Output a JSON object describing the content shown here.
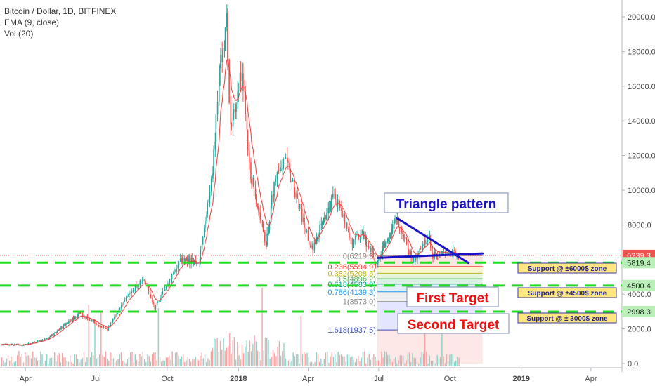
{
  "header": {
    "symbol": "Bitcoin / Dollar, 1D, BITFINEX",
    "indicator_ema": "EMA (9, close)",
    "indicator_vol": "Vol (20)"
  },
  "colors": {
    "up": "#26a69a",
    "down": "#ef5350",
    "vol_up": "#8fd0c8",
    "vol_down": "#f4a6a6",
    "ema": "#e53935",
    "support_line": "#22dd22",
    "triangle_line": "#1a12c8",
    "price_tag": "#ef5350",
    "target_text": "#ee1111",
    "annotation_blue": "#1a12c8",
    "support_box_bg": "#ffe680"
  },
  "chart_data": {
    "type": "candlestick",
    "title": "Bitcoin / Dollar, 1D, BITFINEX",
    "x_ticks": [
      "Apr",
      "Jul",
      "Oct",
      "2018",
      "Apr",
      "Jul",
      "Oct",
      "2019",
      "Apr"
    ],
    "y_ticks": [
      "20000.0",
      "18000.0",
      "16000.0",
      "14000.0",
      "12000.0",
      "10000.0",
      "8000.0",
      "6000.0",
      "4000.0",
      "2000.0",
      "0.0"
    ],
    "ylim": [
      0,
      20000
    ],
    "current_price": "6239.3",
    "price_series": [
      {
        "date": "2017-03-01",
        "close": 1100
      },
      {
        "date": "2017-04-01",
        "close": 1080
      },
      {
        "date": "2017-05-01",
        "close": 1450
      },
      {
        "date": "2017-06-10",
        "close": 2900
      },
      {
        "date": "2017-07-16",
        "close": 1950
      },
      {
        "date": "2017-08-15",
        "close": 4200
      },
      {
        "date": "2017-09-02",
        "close": 4900
      },
      {
        "date": "2017-09-15",
        "close": 3200
      },
      {
        "date": "2017-10-20",
        "close": 6000
      },
      {
        "date": "2017-11-12",
        "close": 5900
      },
      {
        "date": "2017-11-29",
        "close": 10800
      },
      {
        "date": "2017-12-07",
        "close": 16500
      },
      {
        "date": "2017-12-17",
        "close": 19700
      },
      {
        "date": "2017-12-22",
        "close": 13500
      },
      {
        "date": "2018-01-06",
        "close": 17000
      },
      {
        "date": "2018-01-17",
        "close": 11000
      },
      {
        "date": "2018-02-06",
        "close": 6900
      },
      {
        "date": "2018-02-20",
        "close": 11400
      },
      {
        "date": "2018-03-05",
        "close": 11500
      },
      {
        "date": "2018-04-06",
        "close": 6600
      },
      {
        "date": "2018-05-05",
        "close": 9800
      },
      {
        "date": "2018-05-28",
        "close": 7100
      },
      {
        "date": "2018-06-10",
        "close": 7500
      },
      {
        "date": "2018-06-29",
        "close": 5800
      },
      {
        "date": "2018-07-24",
        "close": 8400
      },
      {
        "date": "2018-08-14",
        "close": 5900
      },
      {
        "date": "2018-09-04",
        "close": 7400
      },
      {
        "date": "2018-09-08",
        "close": 6200
      },
      {
        "date": "2018-09-25",
        "close": 6500
      },
      {
        "date": "2018-10-12",
        "close": 6239
      }
    ],
    "fib_levels": [
      {
        "label": "0(6219.3)",
        "value": 6219.3,
        "color": "#888888",
        "band": "#fde0dc"
      },
      {
        "label": "0.236(5594.9)",
        "value": 5594.9,
        "color": "#f44336",
        "band": "#f6f4c9"
      },
      {
        "label": "0.382(5208.5)",
        "value": 5208.5,
        "color": "#c0b320",
        "band": "#e0f2d5"
      },
      {
        "label": "0.5(4896.2)",
        "value": 4896.2,
        "color": "#4caf50",
        "band": "#d5efe0"
      },
      {
        "label": "0.618(4583.9)",
        "value": 4583.9,
        "color": "#089981",
        "band": "#d9ecf7"
      },
      {
        "label": "0.786(4139.3)",
        "value": 4139.3,
        "color": "#2196f3",
        "band": "#ececec"
      },
      {
        "label": "1(3573.0)",
        "value": 3573.0,
        "color": "#888888",
        "band": "#dfe0ff"
      },
      {
        "label": "1.618(1937.5)",
        "value": 1937.5,
        "color": "#3f51b5",
        "band": "#fde3e3"
      }
    ],
    "price_tags": [
      {
        "value": 6239.3,
        "label": "6239.3",
        "color": "#ef5350"
      },
      {
        "value": 5819.4,
        "label": "5819.4",
        "color": "#b8f0b8"
      },
      {
        "value": 4500.4,
        "label": "4500.4",
        "color": "#b8f0b8"
      },
      {
        "value": 2998.3,
        "label": "2998.3",
        "color": "#b8f0b8"
      }
    ],
    "support_lines": [
      5819.4,
      4500.4,
      2998.3
    ],
    "annotations": {
      "triangle": "Triangle pattern",
      "first_target": "First Target",
      "second_target": "Second Target",
      "support_6000": "Support @ ±6000$ zone",
      "support_4500": "Support @ ±4500$ zone",
      "support_3000": "Support @ ± 3000$ zone"
    }
  }
}
